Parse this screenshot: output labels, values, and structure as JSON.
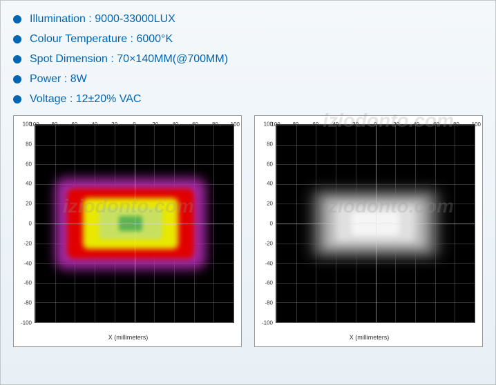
{
  "specs": [
    {
      "label": "Illumination : 9000-33000LUX"
    },
    {
      "label": "Colour Temperature : 6000°K"
    },
    {
      "label": "Spot Dimension : 70×140MM(@700MM)"
    },
    {
      "label": "Power : 8W"
    },
    {
      "label": "Voltage : 12±20% VAC"
    }
  ],
  "chart": {
    "x_label": "X (millimeters)",
    "x_ticks": [
      100,
      80,
      60,
      40,
      20,
      0,
      -20,
      -40,
      -60,
      -80,
      -100
    ],
    "y_ticks": [
      100,
      80,
      60,
      40,
      20,
      0,
      -20,
      -40,
      -60,
      -80,
      -100
    ],
    "x_lim": [
      100,
      -100
    ],
    "y_lim": [
      100,
      -100
    ],
    "grid_color": "rgba(200,200,200,0.25)",
    "bg_color": "#000000"
  },
  "heatmap_color": {
    "type": "heatmap",
    "rings": [
      {
        "color": "#c030c0",
        "w": 76,
        "h": 46,
        "radius": 14,
        "blur": 8,
        "opacity": 0.85
      },
      {
        "color": "#e00000",
        "w": 64,
        "h": 36,
        "radius": 10,
        "blur": 4,
        "opacity": 1
      },
      {
        "color": "#e8e800",
        "w": 48,
        "h": 26,
        "radius": 8,
        "blur": 4,
        "opacity": 1
      },
      {
        "color": "#c8e060",
        "w": 32,
        "h": 16,
        "radius": 6,
        "blur": 3,
        "opacity": 1
      },
      {
        "color": "#50b050",
        "w": 12,
        "h": 8,
        "radius": 3,
        "blur": 3,
        "opacity": 0.9
      }
    ],
    "center_offset_x": -2
  },
  "heatmap_gray": {
    "type": "heatmap",
    "rings": [
      {
        "color": "#4a4a4a",
        "w": 66,
        "h": 36,
        "radius": 10,
        "blur": 10,
        "opacity": 0.9
      },
      {
        "color": "#888888",
        "w": 58,
        "h": 30,
        "radius": 8,
        "blur": 8,
        "opacity": 0.95
      },
      {
        "color": "#bbbbbb",
        "w": 50,
        "h": 24,
        "radius": 6,
        "blur": 6,
        "opacity": 1
      },
      {
        "color": "#e0e0e0",
        "w": 40,
        "h": 18,
        "radius": 5,
        "blur": 5,
        "opacity": 1
      },
      {
        "color": "#f5f5f5",
        "w": 24,
        "h": 12,
        "radius": 4,
        "blur": 4,
        "opacity": 1
      }
    ],
    "center_offset_x": 0
  },
  "watermark": "iziodonto.com"
}
